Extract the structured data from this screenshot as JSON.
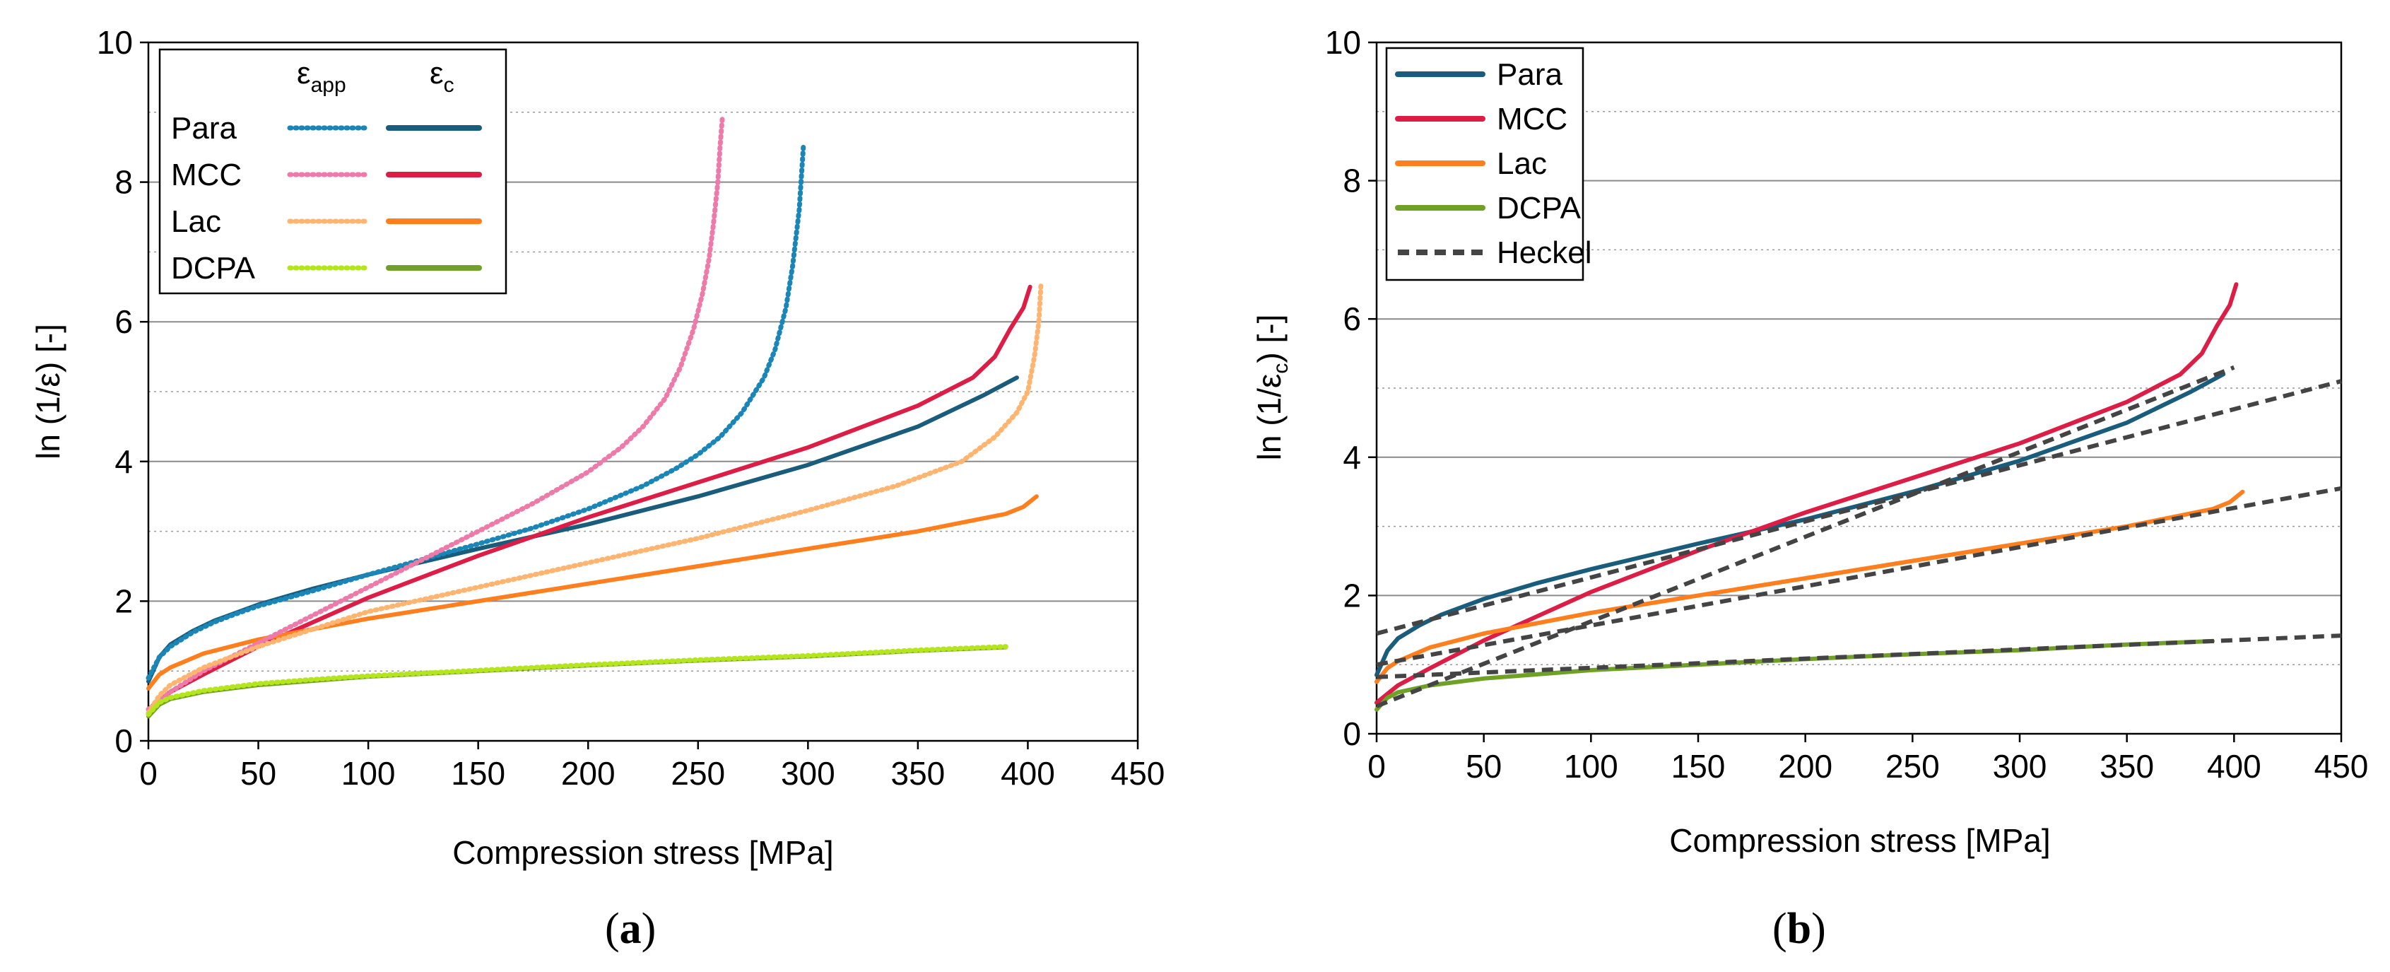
{
  "chart_data": [
    {
      "panel": "a",
      "type": "line",
      "xlabel": "Compression stress [MPa]",
      "ylabel": "ln (1/ε) [-]",
      "xlim": [
        0,
        450
      ],
      "ylim": [
        0,
        10
      ],
      "xticks": [
        "0",
        "50",
        "100",
        "150",
        "200",
        "250",
        "300",
        "350",
        "400",
        "450"
      ],
      "yticks": [
        "0",
        "2",
        "4",
        "6",
        "8",
        "10"
      ],
      "panel_label": "a",
      "legend": {
        "placement": "top-left",
        "col_header_app_base": "ε",
        "col_header_app_sub": "app",
        "col_header_c_base": "ε",
        "col_header_c_sub": "c",
        "rows": [
          "Para",
          "MCC",
          "Lac",
          "DCPA"
        ]
      },
      "series": [
        {
          "name": "Para",
          "measure": "εapp",
          "color": "#1a86b8",
          "style": "dotted",
          "x": [
            0,
            5,
            10,
            20,
            30,
            40,
            50,
            75,
            100,
            125,
            150,
            175,
            200,
            225,
            240,
            250,
            260,
            270,
            280,
            285,
            290,
            293,
            296,
            298
          ],
          "y": [
            0.9,
            1.2,
            1.35,
            1.55,
            1.7,
            1.82,
            1.93,
            2.15,
            2.38,
            2.6,
            2.82,
            3.05,
            3.32,
            3.65,
            3.9,
            4.1,
            4.35,
            4.7,
            5.2,
            5.6,
            6.2,
            6.8,
            7.6,
            8.55
          ]
        },
        {
          "name": "MCC",
          "measure": "εapp",
          "color": "#ee7aaa",
          "style": "dotted",
          "x": [
            0,
            10,
            25,
            50,
            75,
            100,
            125,
            150,
            175,
            200,
            215,
            225,
            235,
            242,
            248,
            252,
            255,
            257,
            259,
            260,
            261
          ],
          "y": [
            0.45,
            0.7,
            1.0,
            1.4,
            1.8,
            2.2,
            2.6,
            3.0,
            3.4,
            3.85,
            4.2,
            4.5,
            4.9,
            5.35,
            5.9,
            6.4,
            6.9,
            7.4,
            8.0,
            8.5,
            8.9
          ]
        },
        {
          "name": "Lac",
          "measure": "εapp",
          "color": "#ffb470",
          "style": "dotted",
          "x": [
            0,
            5,
            10,
            25,
            50,
            75,
            100,
            150,
            200,
            250,
            300,
            340,
            370,
            385,
            395,
            400,
            403,
            405,
            406
          ],
          "y": [
            0.4,
            0.65,
            0.8,
            1.05,
            1.35,
            1.6,
            1.85,
            2.2,
            2.55,
            2.9,
            3.3,
            3.65,
            4.0,
            4.35,
            4.7,
            5.0,
            5.5,
            6.0,
            6.55
          ]
        },
        {
          "name": "DCPA",
          "measure": "εapp",
          "color": "#b5e61d",
          "style": "dotted",
          "x": [
            0,
            5,
            10,
            25,
            50,
            75,
            100,
            150,
            200,
            250,
            300,
            350,
            390
          ],
          "y": [
            0.38,
            0.55,
            0.62,
            0.72,
            0.82,
            0.88,
            0.93,
            1.01,
            1.09,
            1.16,
            1.22,
            1.3,
            1.35
          ]
        },
        {
          "name": "Para",
          "measure": "εc",
          "color": "#195c7c",
          "style": "solid",
          "x": [
            0,
            5,
            10,
            20,
            30,
            50,
            75,
            100,
            150,
            200,
            250,
            300,
            350,
            380,
            395
          ],
          "y": [
            0.85,
            1.2,
            1.38,
            1.57,
            1.72,
            1.95,
            2.18,
            2.38,
            2.75,
            3.1,
            3.5,
            3.95,
            4.5,
            4.95,
            5.2
          ]
        },
        {
          "name": "MCC",
          "measure": "εc",
          "color": "#dc1e46",
          "style": "solid",
          "x": [
            0,
            10,
            25,
            50,
            75,
            100,
            150,
            200,
            250,
            300,
            350,
            375,
            385,
            392,
            398,
            401
          ],
          "y": [
            0.45,
            0.7,
            0.95,
            1.35,
            1.7,
            2.05,
            2.65,
            3.2,
            3.7,
            4.2,
            4.8,
            5.2,
            5.5,
            5.9,
            6.2,
            6.5
          ]
        },
        {
          "name": "Lac",
          "measure": "εc",
          "color": "#ff7f1e",
          "style": "solid",
          "x": [
            0,
            5,
            10,
            25,
            50,
            100,
            150,
            200,
            250,
            300,
            350,
            390,
            398,
            404
          ],
          "y": [
            0.75,
            0.95,
            1.05,
            1.25,
            1.45,
            1.75,
            2.0,
            2.25,
            2.5,
            2.75,
            3.0,
            3.25,
            3.35,
            3.5
          ]
        },
        {
          "name": "DCPA",
          "measure": "εc",
          "color": "#6fa127",
          "style": "solid",
          "x": [
            0,
            5,
            10,
            25,
            50,
            75,
            100,
            150,
            200,
            250,
            300,
            350,
            390
          ],
          "y": [
            0.35,
            0.52,
            0.6,
            0.7,
            0.8,
            0.86,
            0.92,
            1.0,
            1.08,
            1.15,
            1.21,
            1.29,
            1.34
          ]
        }
      ]
    },
    {
      "panel": "b",
      "type": "line",
      "xlabel": "Compression stress [MPa]",
      "ylabel_base": "ln (1/ε",
      "ylabel_sub": "c",
      "ylabel_end": ") [-]",
      "xlim": [
        0,
        450
      ],
      "ylim": [
        0,
        10
      ],
      "xticks": [
        "0",
        "50",
        "100",
        "150",
        "200",
        "250",
        "300",
        "350",
        "400",
        "450"
      ],
      "yticks": [
        "0",
        "2",
        "4",
        "6",
        "8",
        "10"
      ],
      "panel_label": "b",
      "legend": {
        "placement": "top-left",
        "entries": [
          "Para",
          "MCC",
          "Lac",
          "DCPA",
          "Heckel"
        ]
      },
      "series": [
        {
          "name": "Para",
          "color": "#195c7c",
          "style": "solid",
          "x": [
            0,
            5,
            10,
            20,
            30,
            50,
            75,
            100,
            150,
            200,
            250,
            300,
            350,
            380,
            395
          ],
          "y": [
            0.85,
            1.2,
            1.38,
            1.57,
            1.72,
            1.95,
            2.18,
            2.38,
            2.75,
            3.1,
            3.5,
            3.95,
            4.5,
            4.95,
            5.2
          ]
        },
        {
          "name": "MCC",
          "color": "#dc1e46",
          "style": "solid",
          "x": [
            0,
            10,
            25,
            50,
            75,
            100,
            150,
            200,
            250,
            300,
            350,
            375,
            385,
            392,
            398,
            401
          ],
          "y": [
            0.45,
            0.7,
            0.95,
            1.35,
            1.7,
            2.05,
            2.65,
            3.2,
            3.7,
            4.2,
            4.8,
            5.2,
            5.5,
            5.9,
            6.2,
            6.5
          ]
        },
        {
          "name": "Lac",
          "color": "#ff7f1e",
          "style": "solid",
          "x": [
            0,
            5,
            10,
            25,
            50,
            100,
            150,
            200,
            250,
            300,
            350,
            390,
            398,
            404
          ],
          "y": [
            0.75,
            0.95,
            1.05,
            1.25,
            1.45,
            1.75,
            2.0,
            2.25,
            2.5,
            2.75,
            3.0,
            3.25,
            3.35,
            3.5
          ]
        },
        {
          "name": "DCPA",
          "color": "#6fa127",
          "style": "solid",
          "x": [
            0,
            5,
            10,
            25,
            50,
            75,
            100,
            150,
            200,
            250,
            300,
            350,
            390
          ],
          "y": [
            0.35,
            0.52,
            0.6,
            0.7,
            0.8,
            0.86,
            0.92,
            1.0,
            1.08,
            1.15,
            1.21,
            1.29,
            1.34
          ]
        },
        {
          "name": "Heckel",
          "color": "#444444",
          "style": "dashed",
          "segments": [
            {
              "x": [
                0,
                400
              ],
              "y": [
                0.4,
                5.3
              ]
            },
            {
              "x": [
                0,
                450
              ],
              "y": [
                1.45,
                5.1
              ]
            },
            {
              "x": [
                0,
                450
              ],
              "y": [
                1.0,
                3.55
              ]
            },
            {
              "x": [
                0,
                450
              ],
              "y": [
                0.82,
                1.42
              ]
            }
          ]
        }
      ]
    }
  ]
}
